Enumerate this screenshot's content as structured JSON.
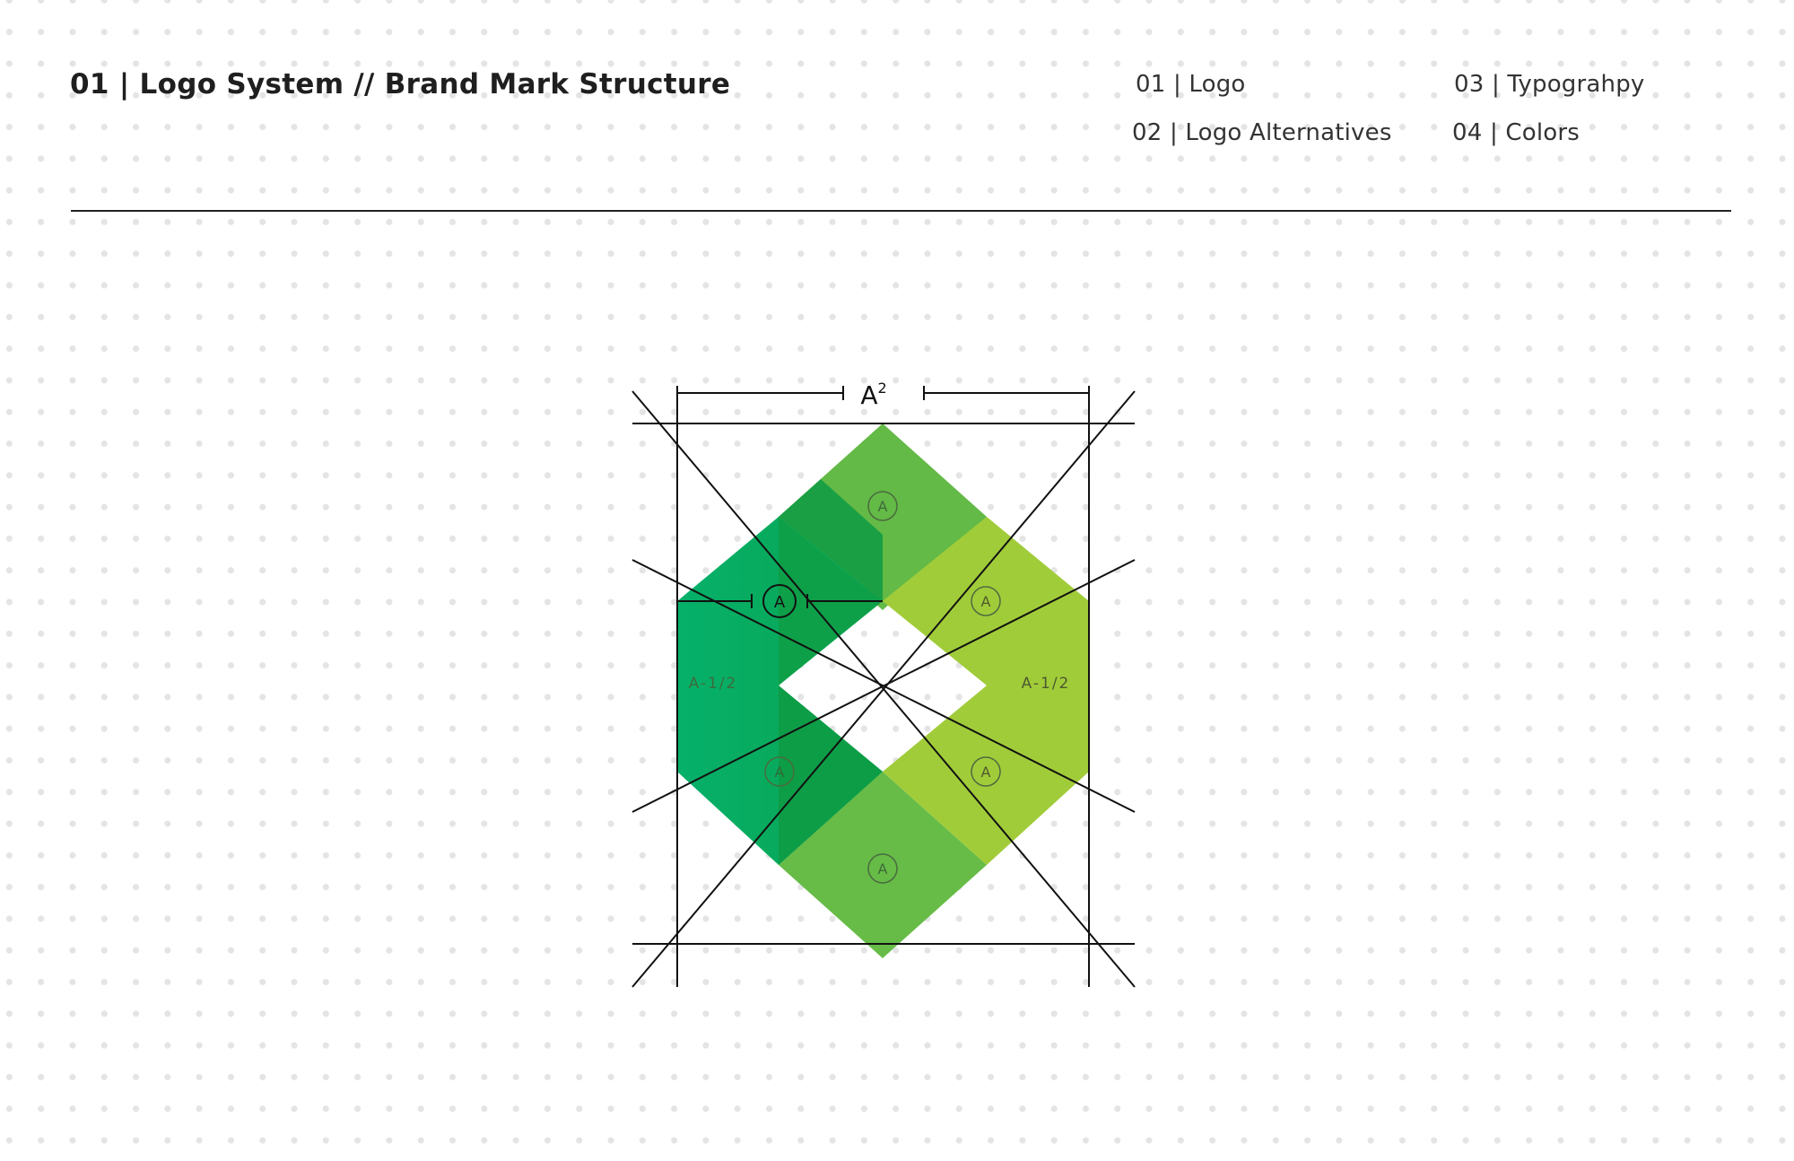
{
  "header": {
    "title": "01 | Logo System // Brand Mark Structure",
    "nav": [
      {
        "label": "01 | Logo"
      },
      {
        "label": "02 | Logo Alternatives"
      },
      {
        "label": "03 | Typograhpy"
      },
      {
        "label": "04 | Colors"
      }
    ]
  },
  "diagram": {
    "width_label": "A",
    "width_superscript": "2",
    "module_label": "A",
    "half_labels": [
      "A-1/2",
      "A-1/2"
    ],
    "cell_labels": [
      "A",
      "A",
      "A",
      "A",
      "A",
      "A"
    ]
  },
  "colors": {
    "dark_green": "#00a651",
    "mid_green": "#63ba46",
    "light_green": "#a1cc3a",
    "line": "#111111"
  }
}
